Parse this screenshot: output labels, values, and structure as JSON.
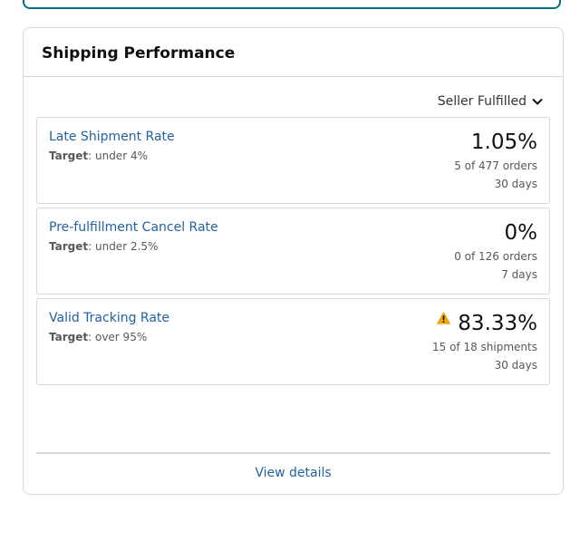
{
  "card": {
    "title": "Shipping Performance",
    "filter": "Seller Fulfilled",
    "view_details": "View details"
  },
  "metrics": [
    {
      "name": "Late Shipment Rate",
      "target_label": "Target",
      "target_value": ": under 4%",
      "value": "1.05%",
      "count": "5 of 477 orders",
      "period": "30 days",
      "warning": false
    },
    {
      "name": "Pre-fulfillment Cancel Rate",
      "target_label": "Target",
      "target_value": ": under 2.5%",
      "value": "0%",
      "count": "0 of 126 orders",
      "period": "7 days",
      "warning": false
    },
    {
      "name": "Valid Tracking Rate",
      "target_label": "Target",
      "target_value": ": over 95%",
      "value": "83.33%",
      "count": "15 of 18 shipments",
      "period": "30 days",
      "warning": true
    }
  ],
  "colors": {
    "link": "#2162a1",
    "warning": "#f0a70a",
    "accent_border": "#007185"
  }
}
